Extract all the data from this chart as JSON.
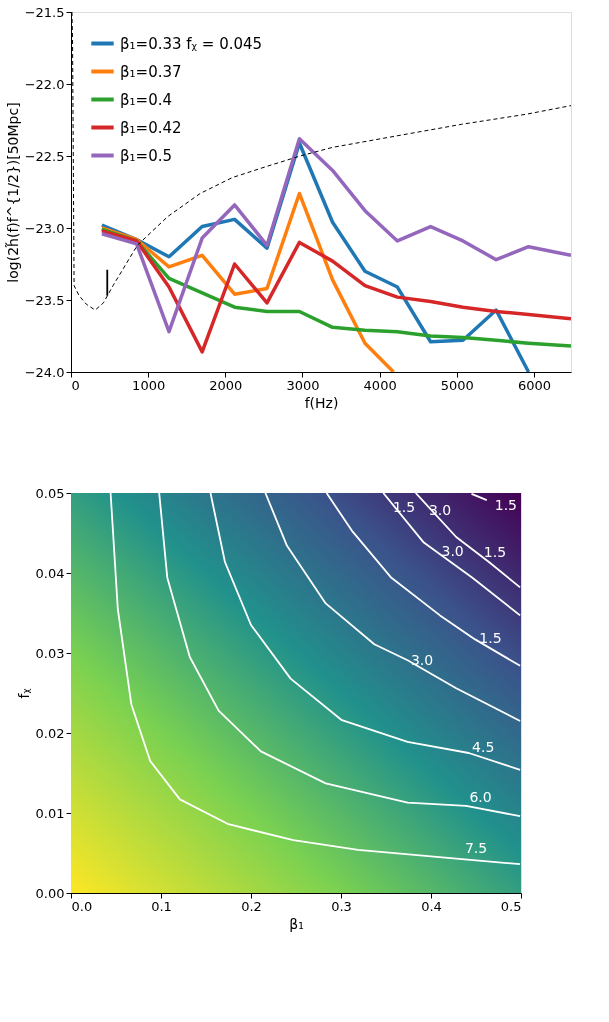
{
  "chart_data": [
    {
      "type": "line",
      "xlabel": "f(Hz)",
      "ylabel": "log(2h̃(f)f^{1/2})[50Mpc]",
      "xlim": [
        0,
        6480
      ],
      "ylim": [
        -24.0,
        -21.5
      ],
      "xticks": [
        0,
        1000,
        2000,
        3000,
        4000,
        5000,
        6000
      ],
      "yticks": [
        {
          "value": -24.0,
          "label": "−24.0"
        },
        {
          "value": -23.5,
          "label": "−23.5"
        },
        {
          "value": -23.0,
          "label": "−23.0"
        },
        {
          "value": -22.5,
          "label": "−22.5"
        },
        {
          "value": -22.0,
          "label": "−22.0"
        },
        {
          "value": -21.5,
          "label": "−21.5"
        }
      ],
      "legend": "top left",
      "series": [
        {
          "name": "β₁=0.33   fᵪ = 0.045",
          "color": "#1f77b4",
          "x": [
            400,
            850,
            1270,
            1700,
            2120,
            2540,
            2960,
            3390,
            3810,
            4230,
            4660,
            5080,
            5510,
            5930
          ],
          "values": [
            -22.98,
            -23.08,
            -23.2,
            -22.99,
            -22.94,
            -23.14,
            -22.41,
            -22.96,
            -23.3,
            -23.41,
            -23.79,
            -23.78,
            -23.57,
            -24.0
          ]
        },
        {
          "name": "β₁=0.37",
          "color": "#ff7f0e",
          "x": [
            400,
            850,
            1270,
            1700,
            2120,
            2540,
            2960,
            3390,
            3810,
            4180
          ],
          "values": [
            -23.0,
            -23.08,
            -23.27,
            -23.19,
            -23.46,
            -23.42,
            -22.76,
            -23.36,
            -23.8,
            -24.0
          ]
        },
        {
          "name": "β₁=0.4",
          "color": "#2ca02c",
          "x": [
            400,
            850,
            1270,
            1700,
            2120,
            2540,
            2960,
            3390,
            3810,
            4230,
            4660,
            5080,
            5510,
            5930,
            6480
          ],
          "values": [
            -23.01,
            -23.09,
            -23.35,
            -23.45,
            -23.55,
            -23.58,
            -23.58,
            -23.69,
            -23.71,
            -23.72,
            -23.75,
            -23.76,
            -23.78,
            -23.8,
            -23.82
          ]
        },
        {
          "name": "β₁=0.42",
          "color": "#d62728",
          "x": [
            400,
            850,
            1270,
            1700,
            2120,
            2540,
            2960,
            3390,
            3810,
            4230,
            4660,
            5080,
            5510,
            5930,
            6480
          ],
          "values": [
            -23.02,
            -23.09,
            -23.41,
            -23.86,
            -23.25,
            -23.52,
            -23.1,
            -23.23,
            -23.4,
            -23.48,
            -23.51,
            -23.55,
            -23.58,
            -23.6,
            -23.63
          ]
        },
        {
          "name": "β₁=0.5",
          "color": "#9467bd",
          "x": [
            400,
            850,
            1270,
            1700,
            2120,
            2540,
            2960,
            3390,
            3810,
            4230,
            4660,
            5080,
            5510,
            5930,
            6480
          ],
          "values": [
            -23.04,
            -23.11,
            -23.72,
            -23.07,
            -22.84,
            -23.12,
            -22.38,
            -22.6,
            -22.88,
            -23.09,
            -22.99,
            -23.09,
            -23.22,
            -23.13,
            -23.19
          ]
        },
        {
          "color": "#000000",
          "line_style": "dashed",
          "x": [
            12,
            20,
            40,
            105,
            200,
            313,
            420,
            545,
            860,
            1255,
            1675,
            2090,
            2550,
            2970,
            3390,
            4225,
            5060,
            5900,
            6480
          ],
          "values": [
            -21.5,
            -21.69,
            -23.4,
            -23.47,
            -23.53,
            -23.57,
            -23.52,
            -23.4,
            -23.12,
            -22.92,
            -22.76,
            -22.65,
            -22.57,
            -22.5,
            -22.44,
            -22.36,
            -22.28,
            -22.21,
            -22.15
          ]
        },
        {
          "color": "#000000",
          "line_style": "solid",
          "x": [
            470,
            470
          ],
          "values": [
            -23.29,
            -23.47
          ]
        }
      ]
    },
    {
      "type": "line",
      "xlabel": "β₁",
      "ylabel": "fᵪ",
      "xlim": [
        0.0,
        0.5
      ],
      "ylim": [
        0.0,
        0.05
      ],
      "xticks": [
        {
          "value": 0.0,
          "label": "0.0"
        },
        {
          "value": 0.1,
          "label": "0.1"
        },
        {
          "value": 0.2,
          "label": "0.2"
        },
        {
          "value": 0.3,
          "label": "0.3"
        },
        {
          "value": 0.4,
          "label": "0.4"
        },
        {
          "value": 0.5,
          "label": "0.5"
        }
      ],
      "yticks": [
        {
          "value": 0.0,
          "label": "0.00"
        },
        {
          "value": 0.01,
          "label": "0.01"
        },
        {
          "value": 0.02,
          "label": "0.02"
        },
        {
          "value": 0.03,
          "label": "0.03"
        },
        {
          "value": 0.04,
          "label": "0.04"
        },
        {
          "value": 0.05,
          "label": "0.05"
        }
      ],
      "series": [
        {
          "color": "#ffffff",
          "x": [
            0.044,
            0.052,
            0.067,
            0.088,
            0.121,
            0.175,
            0.247,
            0.319,
            0.428,
            0.499
          ],
          "values": [
            0.05,
            0.0355,
            0.0236,
            0.0165,
            0.0117,
            0.0086,
            0.0066,
            0.0054,
            0.0043,
            0.0036
          ]
        },
        {
          "color": "#ffffff",
          "x": [
            0.098,
            0.107,
            0.132,
            0.164,
            0.211,
            0.283,
            0.374,
            0.439,
            0.499
          ],
          "values": [
            0.05,
            0.0394,
            0.0295,
            0.0228,
            0.0177,
            0.0137,
            0.0113,
            0.0109,
            0.0096
          ]
        },
        {
          "color": "#ffffff",
          "x": [
            0.155,
            0.171,
            0.2,
            0.244,
            0.301,
            0.374,
            0.442,
            0.499
          ],
          "values": [
            0.05,
            0.0414,
            0.0335,
            0.0268,
            0.0216,
            0.0189,
            0.0175,
            0.0154
          ]
        },
        {
          "color": "#ffffff",
          "x": [
            0.216,
            0.24,
            0.283,
            0.337,
            0.374,
            0.428,
            0.499
          ],
          "values": [
            0.05,
            0.0434,
            0.0362,
            0.0311,
            0.0291,
            0.0256,
            0.0215
          ]
        },
        {
          "color": "#ffffff",
          "x": [
            0.284,
            0.312,
            0.356,
            0.41,
            0.449,
            0.499
          ],
          "values": [
            0.05,
            0.0453,
            0.0394,
            0.0347,
            0.0317,
            0.0284
          ]
        },
        {
          "color": "#ffffff",
          "x": [
            0.347,
            0.392,
            0.446,
            0.499
          ],
          "values": [
            0.05,
            0.0438,
            0.0394,
            0.0347
          ]
        },
        {
          "color": "#ffffff",
          "x": [
            0.383,
            0.428,
            0.464,
            0.499
          ],
          "values": [
            0.05,
            0.0445,
            0.0414,
            0.0382
          ]
        },
        {
          "color": "#ffffff",
          "x": [
            0.445,
            0.462
          ],
          "values": [
            0.0499,
            0.0491
          ]
        }
      ],
      "annotations": [
        {
          "text": "7.5",
          "x": 0.45,
          "y": 0.0042
        },
        {
          "text": "6.0",
          "x": 0.455,
          "y": 0.0106
        },
        {
          "text": "4.5",
          "x": 0.458,
          "y": 0.0169
        },
        {
          "text": "3.0",
          "x": 0.39,
          "y": 0.0277
        },
        {
          "text": "1.5",
          "x": 0.466,
          "y": 0.0305
        },
        {
          "text": "1.5",
          "x": 0.37,
          "y": 0.0469
        },
        {
          "text": "3.0",
          "x": 0.424,
          "y": 0.0414
        },
        {
          "text": "3.0",
          "x": 0.41,
          "y": 0.0465
        },
        {
          "text": "1.5",
          "x": 0.471,
          "y": 0.0413
        },
        "1.5"
      ]
    }
  ]
}
